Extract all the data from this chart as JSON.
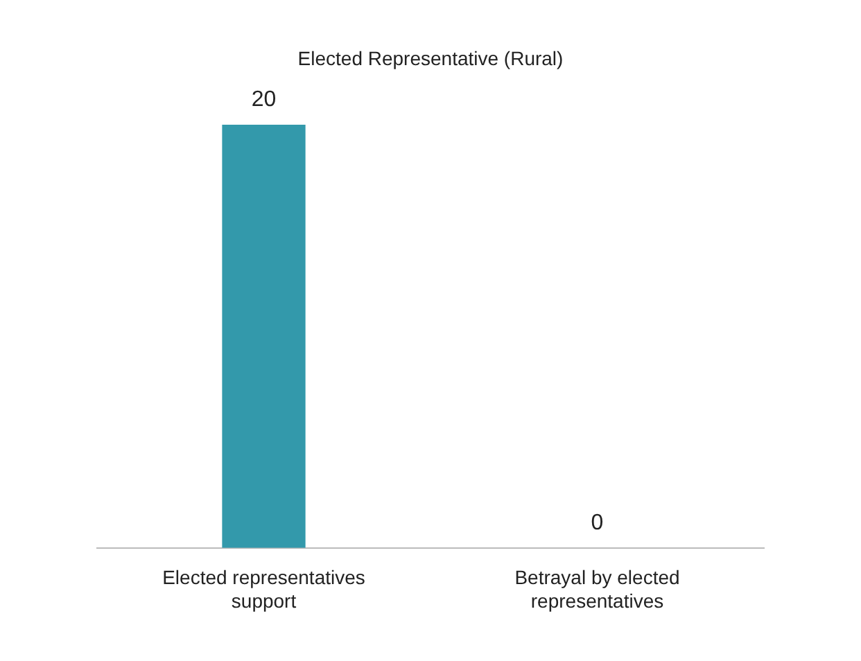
{
  "chart_data": {
    "type": "bar",
    "title": "Elected Representative (Rural)",
    "categories": [
      "Elected representatives support",
      "Betrayal by elected representatives"
    ],
    "values": [
      20,
      0
    ],
    "color": "#3399ab",
    "data_labels": true,
    "grid": false,
    "legend": false
  }
}
